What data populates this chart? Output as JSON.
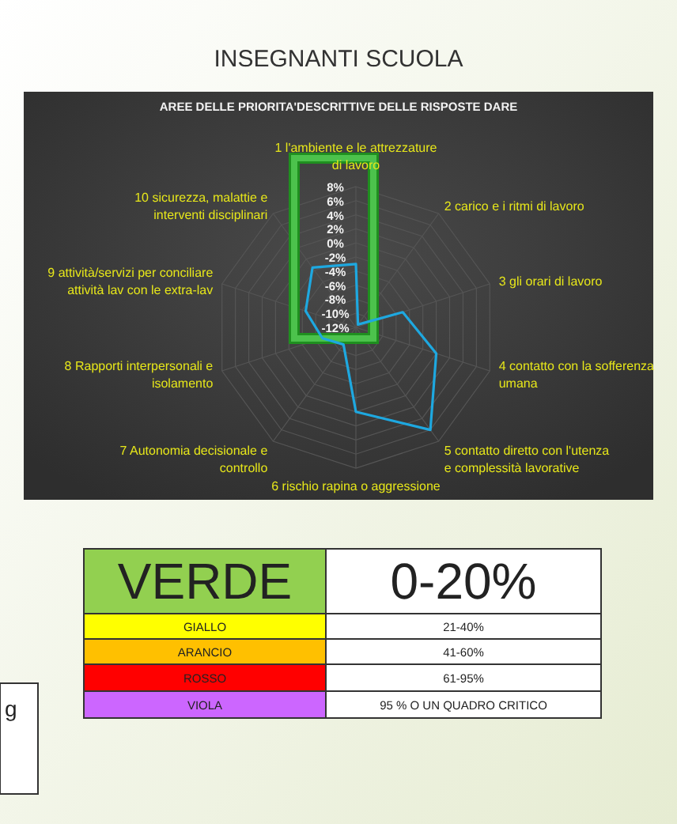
{
  "chart_data": {
    "type": "radar",
    "title": "INSEGNANTI SCUOLA",
    "subtitle": "AREE DELLE PRIORITA'DESCRITTIVE DELLE RISPOSTE DARE",
    "categories": [
      "1  l'ambiente e le attrezzature\ndi lavoro",
      "2 carico e i ritmi di lavoro",
      "3 gli orari di lavoro",
      "4 contatto con la sofferenza\numana",
      "5  contatto diretto con l'utenza\ne  complessità lavorative",
      "6 rischio rapina o aggressione",
      "7 Autonomia decisionale e\ncontrollo",
      "8 Rapporti interpersonali e\nisolamento",
      "9 attività/servizi per conciliare\nattività lav con le extra-lav",
      "10 sicurezza, malattie e\ninterventi disciplinari"
    ],
    "series": [
      {
        "color": "#1ea8e0",
        "values": [
          -3,
          -11.5,
          -5,
          0,
          6,
          0,
          -9,
          -7,
          -4.5,
          -1.5
        ]
      }
    ],
    "ylim": [
      -12,
      8
    ],
    "yticks": [
      {
        "value": 8,
        "label": "8%"
      },
      {
        "value": 6,
        "label": "6%"
      },
      {
        "value": 4,
        "label": "4%"
      },
      {
        "value": 2,
        "label": "2%"
      },
      {
        "value": 0,
        "label": "0%"
      },
      {
        "value": -2,
        "label": "-2%"
      },
      {
        "value": -4,
        "label": "-4%"
      },
      {
        "value": -6,
        "label": "-6%"
      },
      {
        "value": -8,
        "label": "-8%"
      },
      {
        "value": -10,
        "label": "-10%"
      },
      {
        "value": -12,
        "label": "-12%"
      }
    ],
    "grid": true,
    "marker": "none",
    "annotations": [
      "VERDE",
      "0-20%",
      "GIALLO",
      "21-40%",
      "ARANCIO",
      "41-60%",
      "ROSSO",
      "61-95%",
      "VIOLA",
      "95 % O UN QUADRO  CRITICO",
      "g"
    ]
  }
}
